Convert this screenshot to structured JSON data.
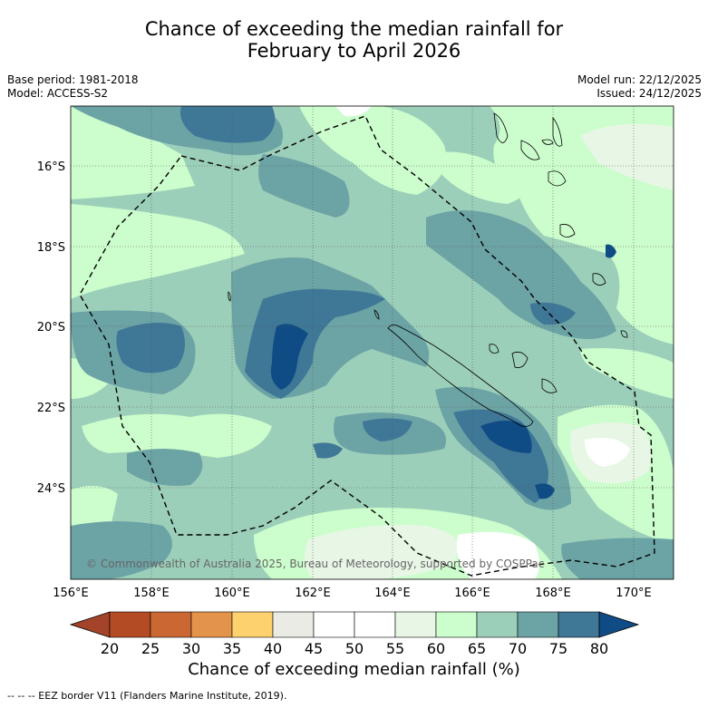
{
  "title": {
    "line1": "Chance of exceeding the median rainfall for",
    "line2": "February to April 2026"
  },
  "meta": {
    "base_period": "Base period: 1981-2018",
    "model": "Model: ACCESS-S2",
    "model_run": "Model run: 22/12/2025",
    "issued": "Issued: 24/12/2025"
  },
  "map": {
    "lon_labels": [
      "156°E",
      "158°E",
      "160°E",
      "162°E",
      "164°E",
      "166°E",
      "168°E",
      "170°E"
    ],
    "lat_labels": [
      "16°S",
      "18°S",
      "20°S",
      "22°S",
      "24°S"
    ],
    "copyright": "© Commonwealth of Australia 2025, Bureau of Meteorology, supported by COSPPac"
  },
  "colorbar": {
    "ticks": [
      "20",
      "25",
      "30",
      "35",
      "40",
      "45",
      "50",
      "55",
      "60",
      "65",
      "70",
      "75",
      "80"
    ],
    "colors": [
      "#a3432a",
      "#b34b25",
      "#cb6733",
      "#e4934a",
      "#fdd26e",
      "#ebebe6",
      "#ffffff",
      "#ffffff",
      "#e8f6e6",
      "#ccfdcc",
      "#9ccfb9",
      "#6ca3a5",
      "#3f7797",
      "#0f4c85"
    ],
    "label": "Chance of exceeding median rainfall (%)"
  },
  "footnote": "-- -- -- EEZ border V11 (Flanders Marine Institute, 2019)."
}
